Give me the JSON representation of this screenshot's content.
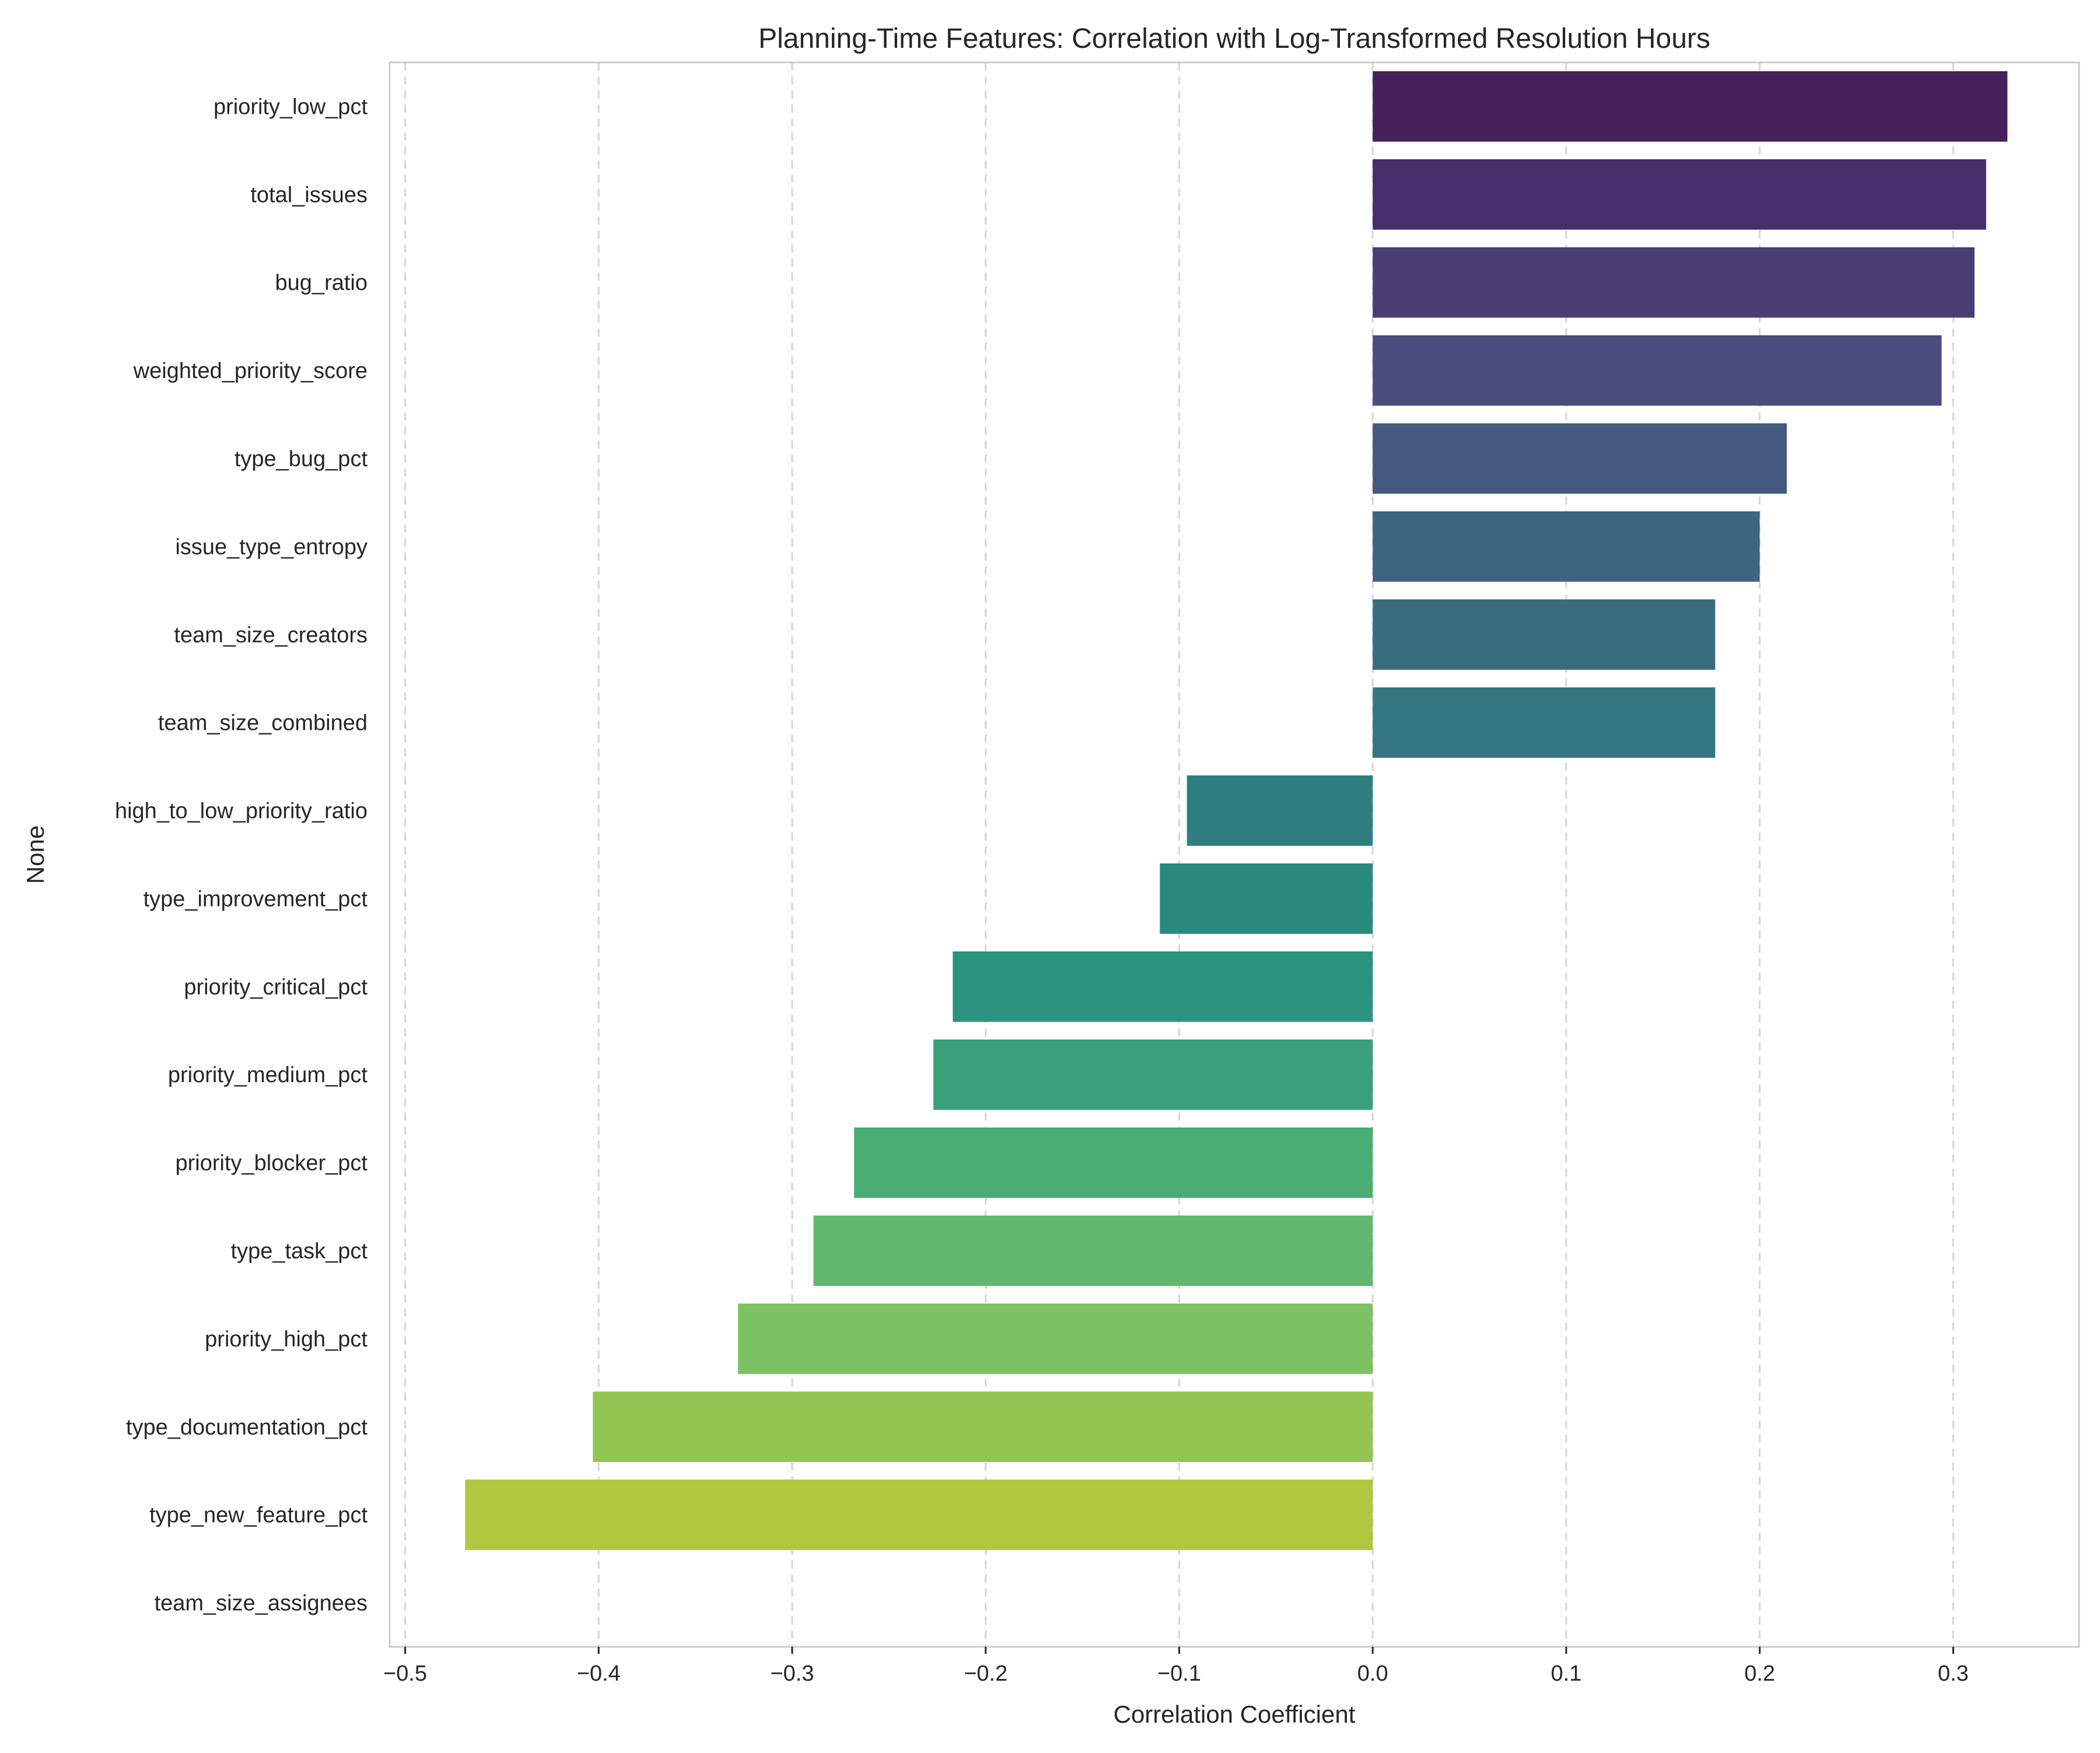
{
  "chart_data": {
    "type": "bar",
    "orientation": "horizontal",
    "title": "Planning-Time Features: Correlation with Log-Transformed Resolution Hours",
    "xlabel": "Correlation Coefficient",
    "ylabel": "None",
    "xlim": [
      -0.508,
      0.365
    ],
    "xticks": [
      -0.5,
      -0.4,
      -0.3,
      -0.2,
      -0.1,
      0.0,
      0.1,
      0.2,
      0.3
    ],
    "xtick_labels": [
      "−0.5",
      "−0.4",
      "−0.3",
      "−0.2",
      "−0.1",
      "0.0",
      "0.1",
      "0.2",
      "0.3"
    ],
    "grid": "vertical dashed",
    "categories": [
      "priority_low_pct",
      "total_issues",
      "bug_ratio",
      "weighted_priority_score",
      "type_bug_pct",
      "issue_type_entropy",
      "team_size_creators",
      "team_size_combined",
      "high_to_low_priority_ratio",
      "type_improvement_pct",
      "priority_critical_pct",
      "priority_medium_pct",
      "priority_blocker_pct",
      "type_task_pct",
      "priority_high_pct",
      "type_documentation_pct",
      "type_new_feature_pct",
      "team_size_assignees"
    ],
    "values": [
      0.328,
      0.317,
      0.311,
      0.294,
      0.214,
      0.2,
      0.177,
      0.177,
      -0.096,
      -0.11,
      -0.217,
      -0.227,
      -0.268,
      -0.289,
      -0.328,
      -0.403,
      -0.469,
      null
    ],
    "colors": [
      "#45215c",
      "#472d6b",
      "#493f75",
      "#4a4c7d",
      "#43597f",
      "#3d6481",
      "#386d80",
      "#337680",
      "#2e8080",
      "#2a8a80",
      "#2b9480",
      "#39a07a",
      "#4aad74",
      "#61b86e",
      "#7cc262",
      "#93c553",
      "#aec83f",
      "#bdc735"
    ]
  }
}
